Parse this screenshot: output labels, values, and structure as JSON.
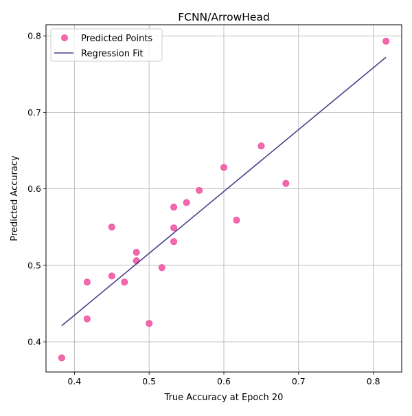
{
  "chart_data": {
    "type": "scatter",
    "title": "FCNN/ArrowHead",
    "xlabel": "True Accuracy at Epoch 20",
    "ylabel": "Predicted Accuracy",
    "xlim": [
      0.362,
      0.838
    ],
    "ylim": [
      0.3605,
      0.8145
    ],
    "xticks": [
      0.4,
      0.5,
      0.6,
      0.7,
      0.8
    ],
    "yticks": [
      0.4,
      0.5,
      0.6,
      0.7,
      0.8
    ],
    "xtick_labels": [
      "0.4",
      "0.5",
      "0.6",
      "0.7",
      "0.8"
    ],
    "ytick_labels": [
      "0.4",
      "0.5",
      "0.6",
      "0.7",
      "0.8"
    ],
    "grid": true,
    "legend_position": "top-left",
    "series": [
      {
        "name": "Predicted Points",
        "kind": "scatter",
        "color": "#f0509e",
        "points": [
          {
            "x": 0.383,
            "y": 0.379
          },
          {
            "x": 0.417,
            "y": 0.43
          },
          {
            "x": 0.417,
            "y": 0.478
          },
          {
            "x": 0.45,
            "y": 0.486
          },
          {
            "x": 0.45,
            "y": 0.55
          },
          {
            "x": 0.467,
            "y": 0.478
          },
          {
            "x": 0.483,
            "y": 0.506
          },
          {
            "x": 0.483,
            "y": 0.517
          },
          {
            "x": 0.5,
            "y": 0.424
          },
          {
            "x": 0.517,
            "y": 0.497
          },
          {
            "x": 0.533,
            "y": 0.531
          },
          {
            "x": 0.533,
            "y": 0.549
          },
          {
            "x": 0.533,
            "y": 0.576
          },
          {
            "x": 0.55,
            "y": 0.582
          },
          {
            "x": 0.567,
            "y": 0.598
          },
          {
            "x": 0.6,
            "y": 0.628
          },
          {
            "x": 0.617,
            "y": 0.559
          },
          {
            "x": 0.65,
            "y": 0.656
          },
          {
            "x": 0.683,
            "y": 0.607
          },
          {
            "x": 0.817,
            "y": 0.793
          }
        ]
      },
      {
        "name": "Regression Fit",
        "kind": "line",
        "color": "#483d8b",
        "points": [
          {
            "x": 0.383,
            "y": 0.421
          },
          {
            "x": 0.817,
            "y": 0.772
          }
        ]
      }
    ]
  }
}
